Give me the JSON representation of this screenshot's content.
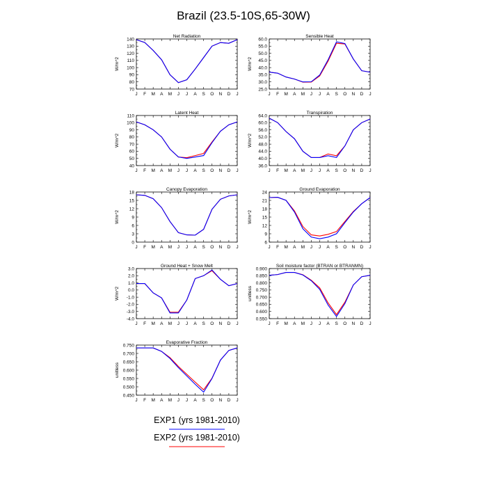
{
  "title": "Brazil (23.5-10S,65-30W)",
  "colors": {
    "exp1": "#0000ff",
    "exp2": "#ff0000"
  },
  "legend": [
    {
      "label": "EXP1 (yrs 1981-2010)",
      "color": "#0000ff"
    },
    {
      "label": "EXP2 (yrs 1981-2010)",
      "color": "#ff0000"
    }
  ],
  "chart_data": [
    {
      "type": "line",
      "title": "Net Radiation",
      "ylabel": "W/m^2",
      "categories": [
        "J",
        "F",
        "M",
        "A",
        "M",
        "J",
        "J",
        "A",
        "S",
        "O",
        "N",
        "D",
        "J"
      ],
      "ylim": [
        70,
        140
      ],
      "yticks": [
        "70",
        "80",
        "90",
        "100",
        "110",
        "120",
        "130",
        "140"
      ],
      "series": [
        {
          "name": "EXP1 (yrs 1981-2010)",
          "values": [
            139,
            135,
            124,
            111,
            90,
            79,
            83,
            98,
            114,
            130,
            135,
            134,
            139
          ]
        },
        {
          "name": "EXP2 (yrs 1981-2010)",
          "values": [
            139,
            135,
            124,
            111,
            90,
            79,
            83,
            98,
            114,
            130,
            135,
            134,
            139
          ]
        }
      ]
    },
    {
      "type": "line",
      "title": "Sensible Heat",
      "ylabel": "W/m^2",
      "categories": [
        "J",
        "F",
        "M",
        "A",
        "M",
        "J",
        "J",
        "A",
        "S",
        "O",
        "N",
        "D",
        "J"
      ],
      "ylim": [
        25,
        60
      ],
      "yticks": [
        "25.0",
        "30.0",
        "35.0",
        "40.0",
        "45.0",
        "50.0",
        "55.0",
        "60.0"
      ],
      "series": [
        {
          "name": "EXP1 (yrs 1981-2010)",
          "values": [
            36.8,
            36.1,
            33.4,
            32.0,
            30.0,
            30.1,
            34.8,
            45.5,
            58.0,
            56.8,
            46.0,
            37.8,
            36.8
          ]
        },
        {
          "name": "EXP2 (yrs 1981-2010)",
          "values": [
            36.8,
            36.1,
            33.4,
            32.0,
            29.8,
            29.9,
            34.2,
            44.5,
            57.0,
            56.5,
            46.0,
            37.8,
            36.8
          ]
        }
      ]
    },
    {
      "type": "line",
      "title": "Latent Heat",
      "ylabel": "W/m^2",
      "categories": [
        "J",
        "F",
        "M",
        "A",
        "M",
        "J",
        "J",
        "A",
        "S",
        "O",
        "N",
        "D",
        "J"
      ],
      "ylim": [
        40,
        110
      ],
      "yticks": [
        "40",
        "50",
        "60",
        "70",
        "80",
        "90",
        "100",
        "110"
      ],
      "series": [
        {
          "name": "EXP1 (yrs 1981-2010)",
          "values": [
            101,
            97,
            90,
            80,
            63,
            52,
            50,
            52,
            54,
            72,
            88,
            97,
            101
          ]
        },
        {
          "name": "EXP2 (yrs 1981-2010)",
          "values": [
            101,
            97,
            90,
            80,
            63,
            52,
            51,
            54,
            57,
            73,
            88,
            97,
            101
          ]
        }
      ]
    },
    {
      "type": "line",
      "title": "Transpiration",
      "ylabel": "W/m^2",
      "categories": [
        "J",
        "F",
        "M",
        "A",
        "M",
        "J",
        "J",
        "A",
        "S",
        "O",
        "N",
        "D",
        "J"
      ],
      "ylim": [
        36,
        64
      ],
      "yticks": [
        "36.0",
        "40.0",
        "44.0",
        "48.0",
        "52.0",
        "56.0",
        "60.0",
        "64.0"
      ],
      "series": [
        {
          "name": "EXP1 (yrs 1981-2010)",
          "values": [
            62.5,
            60.0,
            55.0,
            51.0,
            44.0,
            40.5,
            40.5,
            41.5,
            40.5,
            47.0,
            56.0,
            60.0,
            62.0
          ]
        },
        {
          "name": "EXP2 (yrs 1981-2010)",
          "values": [
            62.5,
            60.0,
            55.0,
            51.0,
            44.0,
            40.5,
            40.5,
            42.5,
            41.5,
            47.0,
            56.0,
            60.0,
            62.0
          ]
        }
      ]
    },
    {
      "type": "line",
      "title": "Canopy Evaporation",
      "ylabel": "W/m^2",
      "categories": [
        "J",
        "F",
        "M",
        "A",
        "M",
        "J",
        "J",
        "A",
        "S",
        "O",
        "N",
        "D",
        "J"
      ],
      "ylim": [
        0,
        18
      ],
      "yticks": [
        "0",
        "3",
        "6",
        "9",
        "12",
        "15",
        "18"
      ],
      "series": [
        {
          "name": "EXP1 (yrs 1981-2010)",
          "values": [
            17.0,
            16.8,
            15.6,
            12.4,
            7.4,
            3.4,
            2.6,
            2.5,
            4.6,
            11.8,
            15.4,
            16.6,
            17.0
          ]
        },
        {
          "name": "EXP2 (yrs 1981-2010)",
          "values": [
            17.0,
            16.8,
            15.6,
            12.4,
            7.4,
            3.4,
            2.6,
            2.5,
            4.6,
            11.8,
            15.4,
            16.6,
            17.0
          ]
        }
      ]
    },
    {
      "type": "line",
      "title": "Ground Evaporation",
      "ylabel": "W/m^2",
      "categories": [
        "J",
        "F",
        "M",
        "A",
        "M",
        "J",
        "J",
        "A",
        "S",
        "O",
        "N",
        "D",
        "J"
      ],
      "ylim": [
        6,
        24
      ],
      "yticks": [
        "6",
        "9",
        "12",
        "15",
        "18",
        "21",
        "24"
      ],
      "series": [
        {
          "name": "EXP1 (yrs 1981-2010)",
          "values": [
            22.0,
            22.1,
            21.0,
            16.8,
            10.8,
            7.8,
            7.2,
            7.8,
            9.0,
            13.0,
            16.8,
            19.8,
            22.0
          ]
        },
        {
          "name": "EXP2 (yrs 1981-2010)",
          "values": [
            22.0,
            22.1,
            21.0,
            17.2,
            11.6,
            8.6,
            8.2,
            8.8,
            9.8,
            13.4,
            17.0,
            19.8,
            22.0
          ]
        }
      ]
    },
    {
      "type": "line",
      "title": "Ground Heat + Snow Melt",
      "ylabel": "W/m^2",
      "categories": [
        "J",
        "F",
        "M",
        "A",
        "M",
        "J",
        "J",
        "A",
        "S",
        "O",
        "N",
        "D",
        "J"
      ],
      "ylim": [
        -4,
        3
      ],
      "yticks": [
        "-4.0",
        "-3.0",
        "-2.0",
        "-1.0",
        "0.0",
        "1.0",
        "2.0",
        "3.0"
      ],
      "series": [
        {
          "name": "EXP1 (yrs 1981-2010)",
          "values": [
            0.9,
            0.9,
            -0.4,
            -1.1,
            -3.2,
            -3.2,
            -1.4,
            1.6,
            2.0,
            2.8,
            1.5,
            0.6,
            0.9
          ]
        },
        {
          "name": "EXP2 (yrs 1981-2010)",
          "values": [
            0.9,
            0.9,
            -0.4,
            -1.1,
            -3.1,
            -3.1,
            -1.4,
            1.6,
            2.0,
            2.7,
            1.5,
            0.6,
            0.9
          ]
        }
      ]
    },
    {
      "type": "line",
      "title": "Soil moisture factor (BTRAN or BTRANMN)",
      "ylabel": "unitless",
      "categories": [
        "J",
        "F",
        "M",
        "A",
        "M",
        "J",
        "J",
        "A",
        "S",
        "O",
        "N",
        "D",
        "J"
      ],
      "ylim": [
        0.55,
        0.9
      ],
      "yticks": [
        "0.550",
        "0.600",
        "0.650",
        "0.700",
        "0.750",
        "0.800",
        "0.850",
        "0.900"
      ],
      "series": [
        {
          "name": "EXP1 (yrs 1981-2010)",
          "values": [
            0.853,
            0.858,
            0.873,
            0.873,
            0.855,
            0.815,
            0.755,
            0.645,
            0.565,
            0.655,
            0.785,
            0.843,
            0.853
          ]
        },
        {
          "name": "EXP2 (yrs 1981-2010)",
          "values": [
            0.853,
            0.858,
            0.873,
            0.873,
            0.857,
            0.818,
            0.765,
            0.66,
            0.578,
            0.665,
            0.785,
            0.843,
            0.853
          ]
        }
      ]
    },
    {
      "type": "line",
      "title": "Evaporative Fraction",
      "ylabel": "unitless",
      "categories": [
        "J",
        "F",
        "M",
        "A",
        "M",
        "J",
        "J",
        "A",
        "S",
        "O",
        "N",
        "D",
        "J"
      ],
      "ylim": [
        0.45,
        0.75
      ],
      "yticks": [
        "0.450",
        "0.500",
        "0.550",
        "0.600",
        "0.650",
        "0.700",
        "0.750"
      ],
      "series": [
        {
          "name": "EXP1 (yrs 1981-2010)",
          "values": [
            0.733,
            0.733,
            0.733,
            0.712,
            0.67,
            0.615,
            0.565,
            0.515,
            0.468,
            0.55,
            0.66,
            0.718,
            0.733
          ]
        },
        {
          "name": "EXP2 (yrs 1981-2010)",
          "values": [
            0.733,
            0.733,
            0.733,
            0.712,
            0.675,
            0.622,
            0.575,
            0.528,
            0.482,
            0.552,
            0.66,
            0.718,
            0.733
          ]
        }
      ]
    }
  ]
}
